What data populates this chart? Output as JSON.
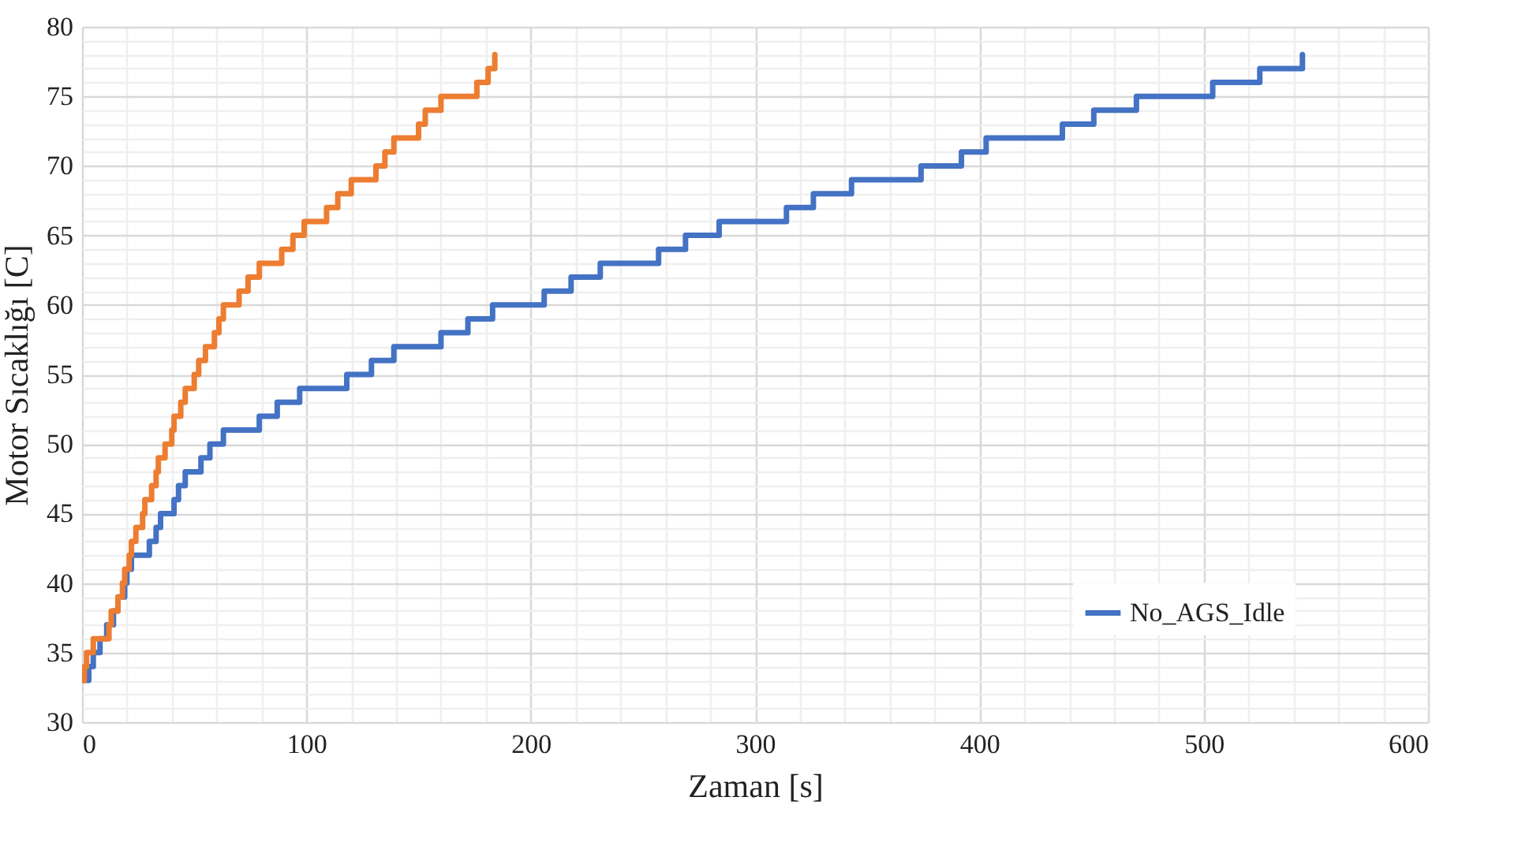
{
  "chart_data": {
    "type": "step",
    "xlabel": "Zaman [s]",
    "ylabel": "Motor Sıcaklığı [C]",
    "xlim": [
      0,
      600
    ],
    "ylim": [
      30,
      80
    ],
    "xticks": [
      0,
      {
        "value": 20,
        "label": null
      },
      {
        "value": 40,
        "label": null
      },
      {
        "value": 60,
        "label": null
      },
      {
        "value": 80,
        "label": null
      },
      100,
      {
        "value": 120,
        "label": null
      },
      {
        "value": 140,
        "label": null
      },
      {
        "value": 160,
        "label": null
      },
      {
        "value": 180,
        "label": null
      },
      200,
      {
        "value": 220,
        "label": null
      },
      {
        "value": 240,
        "label": null
      },
      {
        "value": 260,
        "label": null
      },
      {
        "value": 280,
        "label": null
      },
      300,
      {
        "value": 320,
        "label": null
      },
      {
        "value": 340,
        "label": null
      },
      {
        "value": 360,
        "label": null
      },
      {
        "value": 380,
        "label": null
      },
      400,
      {
        "value": 420,
        "label": null
      },
      {
        "value": 440,
        "label": null
      },
      {
        "value": 460,
        "label": null
      },
      {
        "value": 480,
        "label": null
      },
      500,
      {
        "value": 520,
        "label": null
      },
      {
        "value": 540,
        "label": null
      },
      {
        "value": 560,
        "label": null
      },
      {
        "value": 580,
        "label": null
      },
      600
    ],
    "yticks": [
      30,
      {
        "value": 31,
        "label": null
      },
      {
        "value": 32,
        "label": null
      },
      {
        "value": 33,
        "label": null
      },
      {
        "value": 34,
        "label": null
      },
      35,
      {
        "value": 36,
        "label": null
      },
      {
        "value": 37,
        "label": null
      },
      {
        "value": 38,
        "label": null
      },
      {
        "value": 39,
        "label": null
      },
      40,
      {
        "value": 41,
        "label": null
      },
      {
        "value": 42,
        "label": null
      },
      {
        "value": 43,
        "label": null
      },
      {
        "value": 44,
        "label": null
      },
      45,
      {
        "value": 46,
        "label": null
      },
      {
        "value": 47,
        "label": null
      },
      {
        "value": 48,
        "label": null
      },
      {
        "value": 49,
        "label": null
      },
      50,
      {
        "value": 51,
        "label": null
      },
      {
        "value": 52,
        "label": null
      },
      {
        "value": 53,
        "label": null
      },
      {
        "value": 54,
        "label": null
      },
      55,
      {
        "value": 56,
        "label": null
      },
      {
        "value": 57,
        "label": null
      },
      {
        "value": 58,
        "label": null
      },
      {
        "value": 59,
        "label": null
      },
      60,
      {
        "value": 61,
        "label": null
      },
      {
        "value": 62,
        "label": null
      },
      {
        "value": 63,
        "label": null
      },
      {
        "value": 64,
        "label": null
      },
      65,
      {
        "value": 66,
        "label": null
      },
      {
        "value": 67,
        "label": null
      },
      {
        "value": 68,
        "label": null
      },
      {
        "value": 69,
        "label": null
      },
      70,
      {
        "value": 71,
        "label": null
      },
      {
        "value": 72,
        "label": null
      },
      {
        "value": 73,
        "label": null
      },
      {
        "value": 74,
        "label": null
      },
      75,
      {
        "value": 76,
        "label": null
      },
      {
        "value": 77,
        "label": null
      },
      {
        "value": 78,
        "label": null
      },
      {
        "value": 79,
        "label": null
      },
      80
    ],
    "grid": true,
    "legend": "right",
    "line_style": "solid",
    "series": [
      {
        "name": "No_AGS_Idle",
        "color": "#4472c4",
        "x": [
          0,
          3,
          5,
          8,
          11,
          14,
          16,
          19,
          20,
          22,
          25,
          30,
          33,
          35,
          41,
          43,
          46,
          53,
          57,
          63,
          79,
          87,
          97,
          118,
          129,
          139,
          160,
          172,
          183,
          206,
          218,
          231,
          257,
          269,
          284,
          314,
          326,
          343,
          374,
          392,
          403,
          437,
          451,
          470,
          504,
          525,
          544
        ],
        "values": [
          33,
          34,
          35,
          36,
          37,
          38,
          39,
          40,
          41,
          42,
          42,
          43,
          44,
          45,
          46,
          47,
          48,
          49,
          50,
          51,
          52,
          53,
          54,
          55,
          56,
          57,
          58,
          59,
          60,
          61,
          62,
          63,
          64,
          65,
          66,
          67,
          68,
          69,
          70,
          71,
          72,
          73,
          74,
          75,
          76,
          77,
          78
        ]
      },
      {
        "color": "#ed7d31",
        "x": [
          0,
          1,
          2,
          5,
          12,
          13,
          16,
          18,
          19,
          21,
          22,
          24,
          27,
          28,
          31,
          33,
          34,
          37,
          40,
          41,
          44,
          46,
          50,
          52,
          55,
          59,
          61,
          63,
          70,
          74,
          79,
          89,
          94,
          99,
          109,
          114,
          120,
          131,
          135,
          139,
          150,
          153,
          160,
          176,
          181,
          184
        ],
        "values": [
          33,
          34,
          35,
          36,
          37,
          38,
          39,
          40,
          41,
          42,
          43,
          44,
          45,
          46,
          47,
          48,
          49,
          50,
          51,
          52,
          53,
          54,
          55,
          56,
          57,
          58,
          59,
          60,
          61,
          62,
          63,
          64,
          65,
          66,
          67,
          68,
          69,
          70,
          71,
          72,
          73,
          74,
          75,
          76,
          77,
          78
        ]
      }
    ]
  }
}
